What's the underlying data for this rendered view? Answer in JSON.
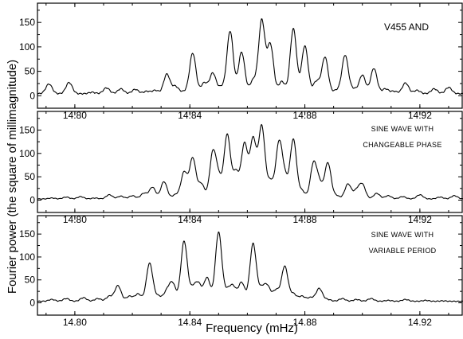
{
  "chart_data": [
    {
      "type": "line",
      "title_lines": [
        "V455 AND"
      ],
      "x_ticks": [
        "14.80",
        "14.84",
        "14.88",
        "14.92"
      ],
      "y_ticks": [
        "0",
        "50",
        "100",
        "150"
      ],
      "xlim": [
        14.787,
        14.935
      ],
      "ylim": [
        -6,
        178
      ],
      "base_level": 5,
      "peaks": [
        {
          "x": 14.791,
          "y": 25
        },
        {
          "x": 14.798,
          "y": 28
        },
        {
          "x": 14.806,
          "y": 8
        },
        {
          "x": 14.811,
          "y": 17
        },
        {
          "x": 14.816,
          "y": 15
        },
        {
          "x": 14.821,
          "y": 14
        },
        {
          "x": 14.825,
          "y": 10
        },
        {
          "x": 14.828,
          "y": 12
        },
        {
          "x": 14.832,
          "y": 45
        },
        {
          "x": 14.835,
          "y": 20
        },
        {
          "x": 14.838,
          "y": 9
        },
        {
          "x": 14.841,
          "y": 88
        },
        {
          "x": 14.845,
          "y": 27
        },
        {
          "x": 14.848,
          "y": 47
        },
        {
          "x": 14.851,
          "y": 18
        },
        {
          "x": 14.854,
          "y": 133
        },
        {
          "x": 14.858,
          "y": 90
        },
        {
          "x": 14.862,
          "y": 32
        },
        {
          "x": 14.865,
          "y": 155
        },
        {
          "x": 14.868,
          "y": 105
        },
        {
          "x": 14.872,
          "y": 30
        },
        {
          "x": 14.876,
          "y": 138
        },
        {
          "x": 14.88,
          "y": 103
        },
        {
          "x": 14.884,
          "y": 30
        },
        {
          "x": 14.887,
          "y": 80
        },
        {
          "x": 14.891,
          "y": 12
        },
        {
          "x": 14.894,
          "y": 84
        },
        {
          "x": 14.897,
          "y": 14
        },
        {
          "x": 14.9,
          "y": 43
        },
        {
          "x": 14.904,
          "y": 57
        },
        {
          "x": 14.908,
          "y": 15
        },
        {
          "x": 14.911,
          "y": 10
        },
        {
          "x": 14.915,
          "y": 27
        },
        {
          "x": 14.919,
          "y": 12
        },
        {
          "x": 14.925,
          "y": 15
        },
        {
          "x": 14.93,
          "y": 18
        }
      ]
    },
    {
      "type": "line",
      "title_lines": [
        "SINE WAVE WITH",
        "CHANGEABLE PHASE"
      ],
      "x_ticks": [
        "14.80",
        "14.84",
        "14.88",
        "14.92"
      ],
      "y_ticks": [
        "0",
        "50",
        "100",
        "150"
      ],
      "xlim": [
        14.787,
        14.935
      ],
      "ylim": [
        -6,
        178
      ],
      "base_level": 3,
      "peaks": [
        {
          "x": 14.792,
          "y": 5
        },
        {
          "x": 14.797,
          "y": 7
        },
        {
          "x": 14.802,
          "y": 8
        },
        {
          "x": 14.807,
          "y": 5
        },
        {
          "x": 14.812,
          "y": 12
        },
        {
          "x": 14.816,
          "y": 9
        },
        {
          "x": 14.82,
          "y": 10
        },
        {
          "x": 14.824,
          "y": 15
        },
        {
          "x": 14.827,
          "y": 28
        },
        {
          "x": 14.831,
          "y": 40
        },
        {
          "x": 14.835,
          "y": 12
        },
        {
          "x": 14.838,
          "y": 60
        },
        {
          "x": 14.841,
          "y": 90
        },
        {
          "x": 14.844,
          "y": 35
        },
        {
          "x": 14.848,
          "y": 100
        },
        {
          "x": 14.85,
          "y": 45
        },
        {
          "x": 14.853,
          "y": 140
        },
        {
          "x": 14.856,
          "y": 60
        },
        {
          "x": 14.859,
          "y": 120
        },
        {
          "x": 14.862,
          "y": 130
        },
        {
          "x": 14.865,
          "y": 158
        },
        {
          "x": 14.868,
          "y": 40
        },
        {
          "x": 14.871,
          "y": 120
        },
        {
          "x": 14.873,
          "y": 45
        },
        {
          "x": 14.876,
          "y": 130
        },
        {
          "x": 14.879,
          "y": 20
        },
        {
          "x": 14.883,
          "y": 77
        },
        {
          "x": 14.885,
          "y": 35
        },
        {
          "x": 14.888,
          "y": 80
        },
        {
          "x": 14.891,
          "y": 10
        },
        {
          "x": 14.895,
          "y": 35
        },
        {
          "x": 14.898,
          "y": 20
        },
        {
          "x": 14.9,
          "y": 33
        },
        {
          "x": 14.905,
          "y": 15
        },
        {
          "x": 14.909,
          "y": 10
        },
        {
          "x": 14.914,
          "y": 8
        },
        {
          "x": 14.92,
          "y": 12
        },
        {
          "x": 14.927,
          "y": 7
        },
        {
          "x": 14.932,
          "y": 10
        }
      ]
    },
    {
      "type": "line",
      "title_lines": [
        "SINE WAVE WITH",
        "VARIABLE PERIOD"
      ],
      "x_ticks": [
        "14.80",
        "14.84",
        "14.88",
        "14.92"
      ],
      "y_ticks": [
        "0",
        "50",
        "100",
        "150"
      ],
      "xlim": [
        14.787,
        14.935
      ],
      "ylim": [
        -6,
        178
      ],
      "base_level": 4,
      "peaks": [
        {
          "x": 14.792,
          "y": 8
        },
        {
          "x": 14.797,
          "y": 10
        },
        {
          "x": 14.803,
          "y": 12
        },
        {
          "x": 14.808,
          "y": 10
        },
        {
          "x": 14.812,
          "y": 15
        },
        {
          "x": 14.815,
          "y": 38
        },
        {
          "x": 14.819,
          "y": 15
        },
        {
          "x": 14.822,
          "y": 20
        },
        {
          "x": 14.826,
          "y": 87
        },
        {
          "x": 14.829,
          "y": 15
        },
        {
          "x": 14.832,
          "y": 25
        },
        {
          "x": 14.834,
          "y": 42
        },
        {
          "x": 14.838,
          "y": 135
        },
        {
          "x": 14.841,
          "y": 30
        },
        {
          "x": 14.843,
          "y": 40
        },
        {
          "x": 14.846,
          "y": 55
        },
        {
          "x": 14.85,
          "y": 155
        },
        {
          "x": 14.853,
          "y": 25
        },
        {
          "x": 14.855,
          "y": 35
        },
        {
          "x": 14.858,
          "y": 45
        },
        {
          "x": 14.862,
          "y": 130
        },
        {
          "x": 14.865,
          "y": 30
        },
        {
          "x": 14.867,
          "y": 35
        },
        {
          "x": 14.87,
          "y": 28
        },
        {
          "x": 14.873,
          "y": 80
        },
        {
          "x": 14.876,
          "y": 20
        },
        {
          "x": 14.879,
          "y": 15
        },
        {
          "x": 14.882,
          "y": 12
        },
        {
          "x": 14.885,
          "y": 32
        },
        {
          "x": 14.888,
          "y": 8
        },
        {
          "x": 14.893,
          "y": 10
        },
        {
          "x": 14.898,
          "y": 8
        },
        {
          "x": 14.903,
          "y": 10
        },
        {
          "x": 14.909,
          "y": 6
        },
        {
          "x": 14.915,
          "y": 8
        },
        {
          "x": 14.922,
          "y": 6
        },
        {
          "x": 14.928,
          "y": 5
        }
      ]
    }
  ],
  "labels": {
    "ylabel": "Fourier power (the square of millimagnitude)",
    "xlabel": "Frequency (mHz)"
  }
}
